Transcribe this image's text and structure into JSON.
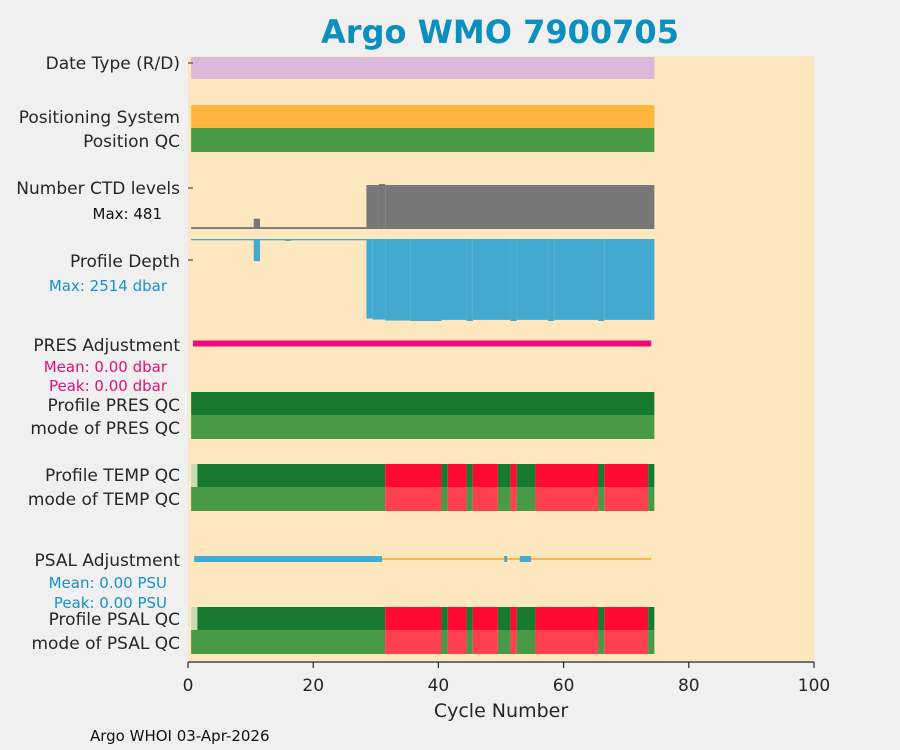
{
  "chart_data": {
    "type": "bar",
    "title": "Argo WMO 7900705",
    "xlabel": "Cycle Number",
    "xlim": [
      0,
      100
    ],
    "xticks": [
      0,
      20,
      40,
      60,
      80,
      100
    ],
    "footer": "Argo WHOI 03-Apr-2026",
    "last_cycle": 74.5,
    "colors": {
      "title": "#0b8fbf",
      "background": "#fde7bf",
      "date_type": "#d9b8d9",
      "positioning": "#ffb540",
      "qc_good": "#489a46",
      "qc_profile_a": "#187a30",
      "qc_bad": "#ff0a32",
      "qc_bad_mode": "#ff4050",
      "qc_light": "#c8dcb4",
      "ctd": "#777777",
      "depth": "#42aad0",
      "pres_adj": "#ee0a7a",
      "psal_adj_bar": "#42aad0",
      "psal_adj_line": "#ffb540",
      "pres_text": "#e0107a",
      "psal_text": "#1890c8"
    },
    "rows": {
      "date_type": "Date Type (R/D)",
      "positioning": "Positioning System",
      "position_qc": "Position QC",
      "ctd_levels": "Number CTD levels",
      "profile_depth": "Profile Depth",
      "pres_adjustment": "PRES Adjustment",
      "profile_pres_qc": "Profile PRES QC",
      "mode_pres_qc": "mode of PRES QC",
      "profile_temp_qc": "Profile TEMP QC",
      "mode_temp_qc": "mode of TEMP QC",
      "psal_adjustment": "PSAL Adjustment",
      "profile_psal_qc": "Profile PSAL QC",
      "mode_psal_qc": "mode of PSAL QC"
    },
    "ctd_max_text": "Max: 481",
    "depth_max_text": "Max: 2514 dbar",
    "pres_mean_text": "Mean: 0.00 dbar",
    "pres_peak_text": "Peak: 0.00 dbar",
    "psal_mean_text": "Mean: 0.00 PSU",
    "psal_peak_text": "Peak: 0.00 PSU",
    "ctd_levels": {
      "max": 481,
      "segments": [
        {
          "from": 0.5,
          "to": 28.5,
          "value": 20
        },
        {
          "from": 10.5,
          "to": 11.5,
          "value": 110
        },
        {
          "from": 28.5,
          "to": 30.5,
          "value": 470
        },
        {
          "from": 30.5,
          "to": 31.5,
          "value": 481
        },
        {
          "from": 31.5,
          "to": 74.5,
          "value": 470
        }
      ]
    },
    "profile_depth": {
      "max": 2514,
      "segments": [
        {
          "from": 0.5,
          "to": 28.5,
          "value": 40
        },
        {
          "from": 10.5,
          "to": 11.5,
          "value": 680
        },
        {
          "from": 15.5,
          "to": 16.5,
          "value": 60
        },
        {
          "from": 28.5,
          "to": 29.5,
          "value": 2440
        },
        {
          "from": 29.5,
          "to": 31.5,
          "value": 2470
        },
        {
          "from": 31.5,
          "to": 35.5,
          "value": 2500
        },
        {
          "from": 35.5,
          "to": 40.5,
          "value": 2514
        },
        {
          "from": 40.5,
          "to": 44.5,
          "value": 2480
        },
        {
          "from": 44.5,
          "to": 45.5,
          "value": 2514
        },
        {
          "from": 45.5,
          "to": 51.5,
          "value": 2480
        },
        {
          "from": 51.5,
          "to": 52.5,
          "value": 2514
        },
        {
          "from": 52.5,
          "to": 57.5,
          "value": 2480
        },
        {
          "from": 57.5,
          "to": 58.5,
          "value": 2514
        },
        {
          "from": 58.5,
          "to": 65.5,
          "value": 2480
        },
        {
          "from": 65.5,
          "to": 66.5,
          "value": 2514
        },
        {
          "from": 66.5,
          "to": 74.5,
          "value": 2480
        }
      ]
    },
    "temp_qc_profile": [
      {
        "from": 0.5,
        "to": 1.5,
        "flag": "light"
      },
      {
        "from": 1.5,
        "to": 31.5,
        "flag": "good"
      },
      {
        "from": 31.5,
        "to": 40.5,
        "flag": "bad"
      },
      {
        "from": 40.5,
        "to": 41.5,
        "flag": "good"
      },
      {
        "from": 41.5,
        "to": 44.5,
        "flag": "bad"
      },
      {
        "from": 44.5,
        "to": 45.5,
        "flag": "good"
      },
      {
        "from": 45.5,
        "to": 49.5,
        "flag": "bad"
      },
      {
        "from": 49.5,
        "to": 51.5,
        "flag": "good"
      },
      {
        "from": 51.5,
        "to": 52.5,
        "flag": "bad"
      },
      {
        "from": 52.5,
        "to": 55.5,
        "flag": "good"
      },
      {
        "from": 55.5,
        "to": 65.5,
        "flag": "bad"
      },
      {
        "from": 65.5,
        "to": 66.5,
        "flag": "good"
      },
      {
        "from": 66.5,
        "to": 73.5,
        "flag": "bad"
      },
      {
        "from": 73.5,
        "to": 74.5,
        "flag": "good"
      }
    ],
    "temp_qc_mode": [
      {
        "from": 0.5,
        "to": 31.5,
        "flag": "good"
      },
      {
        "from": 31.5,
        "to": 40.5,
        "flag": "bad"
      },
      {
        "from": 40.5,
        "to": 41.5,
        "flag": "good"
      },
      {
        "from": 41.5,
        "to": 44.5,
        "flag": "bad"
      },
      {
        "from": 44.5,
        "to": 45.5,
        "flag": "good"
      },
      {
        "from": 45.5,
        "to": 49.5,
        "flag": "bad"
      },
      {
        "from": 49.5,
        "to": 51.5,
        "flag": "good"
      },
      {
        "from": 51.5,
        "to": 52.5,
        "flag": "bad"
      },
      {
        "from": 52.5,
        "to": 55.5,
        "flag": "good"
      },
      {
        "from": 55.5,
        "to": 65.5,
        "flag": "bad"
      },
      {
        "from": 65.5,
        "to": 66.5,
        "flag": "good"
      },
      {
        "from": 66.5,
        "to": 73.5,
        "flag": "bad"
      },
      {
        "from": 73.5,
        "to": 74.5,
        "flag": "good"
      }
    ],
    "psal_adjustment": {
      "line_from": 1,
      "line_to": 74,
      "bars": [
        {
          "from": 1,
          "to": 31
        },
        {
          "from": 50.5,
          "to": 51
        },
        {
          "from": 53,
          "to": 54.8
        }
      ]
    }
  }
}
